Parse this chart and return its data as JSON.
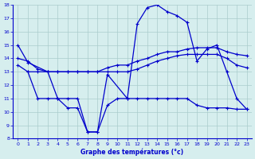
{
  "title": "Graphe des températures (°c)",
  "bg_color": "#d6eeee",
  "line_color": "#0000cc",
  "grid_color": "#aacccc",
  "axis_color": "#0000cc",
  "text_color": "#0000cc",
  "xlim": [
    -0.5,
    23.5
  ],
  "ylim": [
    8,
    18
  ],
  "yticks": [
    8,
    9,
    10,
    11,
    12,
    13,
    14,
    15,
    16,
    17,
    18
  ],
  "xticks": [
    0,
    1,
    2,
    3,
    4,
    5,
    6,
    7,
    8,
    9,
    10,
    11,
    12,
    13,
    14,
    15,
    16,
    17,
    18,
    19,
    20,
    21,
    22,
    23
  ],
  "line1_x": [
    0,
    1,
    3,
    4,
    5,
    6,
    7,
    8,
    9,
    11,
    12,
    13,
    14,
    15,
    16,
    17,
    18,
    19,
    20,
    21,
    22,
    23
  ],
  "line1_y": [
    15.0,
    13.7,
    13.0,
    11.0,
    10.3,
    10.3,
    8.5,
    8.5,
    12.8,
    11.0,
    16.6,
    17.8,
    18.0,
    17.5,
    17.2,
    16.7,
    13.8,
    14.7,
    15.0,
    13.0,
    11.0,
    10.2
  ],
  "line2_x": [
    0,
    1,
    2,
    3,
    4,
    5,
    6,
    7,
    8,
    9,
    10,
    11,
    12,
    13,
    14,
    15,
    16,
    17,
    18,
    19,
    20,
    21,
    22,
    23
  ],
  "line2_y": [
    14.0,
    13.8,
    13.2,
    13.0,
    13.0,
    13.0,
    13.0,
    13.0,
    13.0,
    13.3,
    13.5,
    13.5,
    13.8,
    14.0,
    14.3,
    14.5,
    14.5,
    14.7,
    14.8,
    14.8,
    14.8,
    14.5,
    14.3,
    14.2
  ],
  "line3_x": [
    0,
    1,
    2,
    3,
    4,
    5,
    6,
    7,
    8,
    9,
    10,
    11,
    12,
    13,
    14,
    15,
    16,
    17,
    18,
    19,
    20,
    21,
    22,
    23
  ],
  "line3_y": [
    13.5,
    13.0,
    13.0,
    13.0,
    13.0,
    13.0,
    13.0,
    13.0,
    13.0,
    13.0,
    13.0,
    13.0,
    13.2,
    13.5,
    13.8,
    14.0,
    14.2,
    14.3,
    14.3,
    14.3,
    14.3,
    14.0,
    13.5,
    13.3
  ],
  "line4_x": [
    1,
    2,
    3,
    4,
    5,
    6,
    7,
    8,
    9,
    10,
    11,
    12,
    13,
    14,
    15,
    16,
    17,
    18,
    19,
    20,
    21,
    22,
    23
  ],
  "line4_y": [
    13.0,
    11.0,
    11.0,
    11.0,
    11.0,
    11.0,
    8.5,
    8.5,
    10.5,
    11.0,
    11.0,
    11.0,
    11.0,
    11.0,
    11.0,
    11.0,
    11.0,
    10.5,
    10.3,
    10.3,
    10.3,
    10.2,
    10.2
  ]
}
